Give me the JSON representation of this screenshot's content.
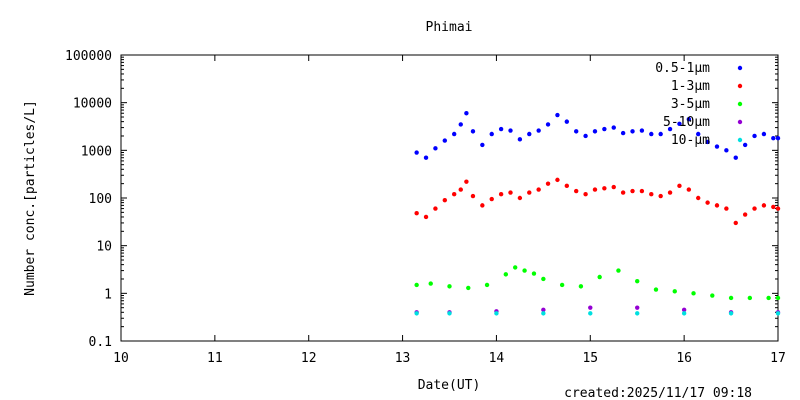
{
  "chart_data": {
    "type": "scatter",
    "title": "Phimai",
    "xlabel": "Date(UT)",
    "ylabel": "Number conc.[particles/L]",
    "footer": "created:2025/11/17 09:18",
    "xlim": [
      10,
      17
    ],
    "ylim": [
      0.1,
      100000
    ],
    "yscale": "log",
    "grid": false,
    "legend_position": "top-right",
    "x_ticks": [
      "10",
      "11",
      "12",
      "13",
      "14",
      "15",
      "16",
      "17"
    ],
    "y_ticks": [
      "0.1",
      "1",
      "10",
      "100",
      "1000",
      "10000",
      "100000"
    ],
    "series": [
      {
        "name": "0.5-1μm",
        "color": "#0000ff",
        "x": [
          13.15,
          13.25,
          13.35,
          13.45,
          13.55,
          13.62,
          13.68,
          13.75,
          13.85,
          13.95,
          14.05,
          14.15,
          14.25,
          14.35,
          14.45,
          14.55,
          14.65,
          14.75,
          14.85,
          14.95,
          15.05,
          15.15,
          15.25,
          15.35,
          15.45,
          15.55,
          15.65,
          15.75,
          15.85,
          15.95,
          16.05,
          16.15,
          16.25,
          16.35,
          16.45,
          16.55,
          16.65,
          16.75,
          16.85,
          16.95,
          17.0
        ],
        "y": [
          900,
          700,
          1100,
          1600,
          2200,
          3500,
          6000,
          2500,
          1300,
          2200,
          2800,
          2600,
          1700,
          2200,
          2600,
          3500,
          5500,
          4000,
          2500,
          2000,
          2500,
          2800,
          3000,
          2300,
          2500,
          2600,
          2200,
          2200,
          2800,
          3600,
          4500,
          2200,
          1500,
          1200,
          1000,
          700,
          1300,
          2000,
          2200,
          1800,
          1800
        ]
      },
      {
        "name": "1-3μm",
        "color": "#ff0000",
        "x": [
          13.15,
          13.25,
          13.35,
          13.45,
          13.55,
          13.62,
          13.68,
          13.75,
          13.85,
          13.95,
          14.05,
          14.15,
          14.25,
          14.35,
          14.45,
          14.55,
          14.65,
          14.75,
          14.85,
          14.95,
          15.05,
          15.15,
          15.25,
          15.35,
          15.45,
          15.55,
          15.65,
          15.75,
          15.85,
          15.95,
          16.05,
          16.15,
          16.25,
          16.35,
          16.45,
          16.55,
          16.65,
          16.75,
          16.85,
          16.95,
          17.0
        ],
        "y": [
          48,
          40,
          60,
          90,
          120,
          150,
          220,
          110,
          70,
          95,
          120,
          130,
          100,
          130,
          150,
          200,
          240,
          180,
          140,
          120,
          150,
          160,
          170,
          130,
          140,
          140,
          120,
          110,
          130,
          180,
          150,
          100,
          80,
          70,
          60,
          30,
          45,
          60,
          70,
          65,
          60
        ]
      },
      {
        "name": "3-5μm",
        "color": "#00ff00",
        "x": [
          13.15,
          13.3,
          13.5,
          13.7,
          13.9,
          14.1,
          14.2,
          14.3,
          14.4,
          14.5,
          14.7,
          14.9,
          15.1,
          15.3,
          15.5,
          15.7,
          15.9,
          16.1,
          16.3,
          16.5,
          16.7,
          16.9,
          17.0
        ],
        "y": [
          1.5,
          1.6,
          1.4,
          1.3,
          1.5,
          2.5,
          3.5,
          3.0,
          2.6,
          2.0,
          1.5,
          1.4,
          2.2,
          3.0,
          1.8,
          1.2,
          1.1,
          1.0,
          0.9,
          0.8,
          0.8,
          0.8,
          0.8
        ]
      },
      {
        "name": "5-10μm",
        "color": "#9400d3",
        "x": [
          13.15,
          13.5,
          14.0,
          14.5,
          15.0,
          15.5,
          16.0,
          16.5,
          17.0
        ],
        "y": [
          0.4,
          0.4,
          0.42,
          0.45,
          0.5,
          0.5,
          0.45,
          0.4,
          0.4
        ]
      },
      {
        "name": "10-μm",
        "color": "#00e0e0",
        "x": [
          13.15,
          13.5,
          14.0,
          14.5,
          15.0,
          15.5,
          16.0,
          16.5,
          17.0
        ],
        "y": [
          0.38,
          0.38,
          0.38,
          0.38,
          0.38,
          0.38,
          0.38,
          0.38,
          0.38
        ]
      }
    ]
  }
}
